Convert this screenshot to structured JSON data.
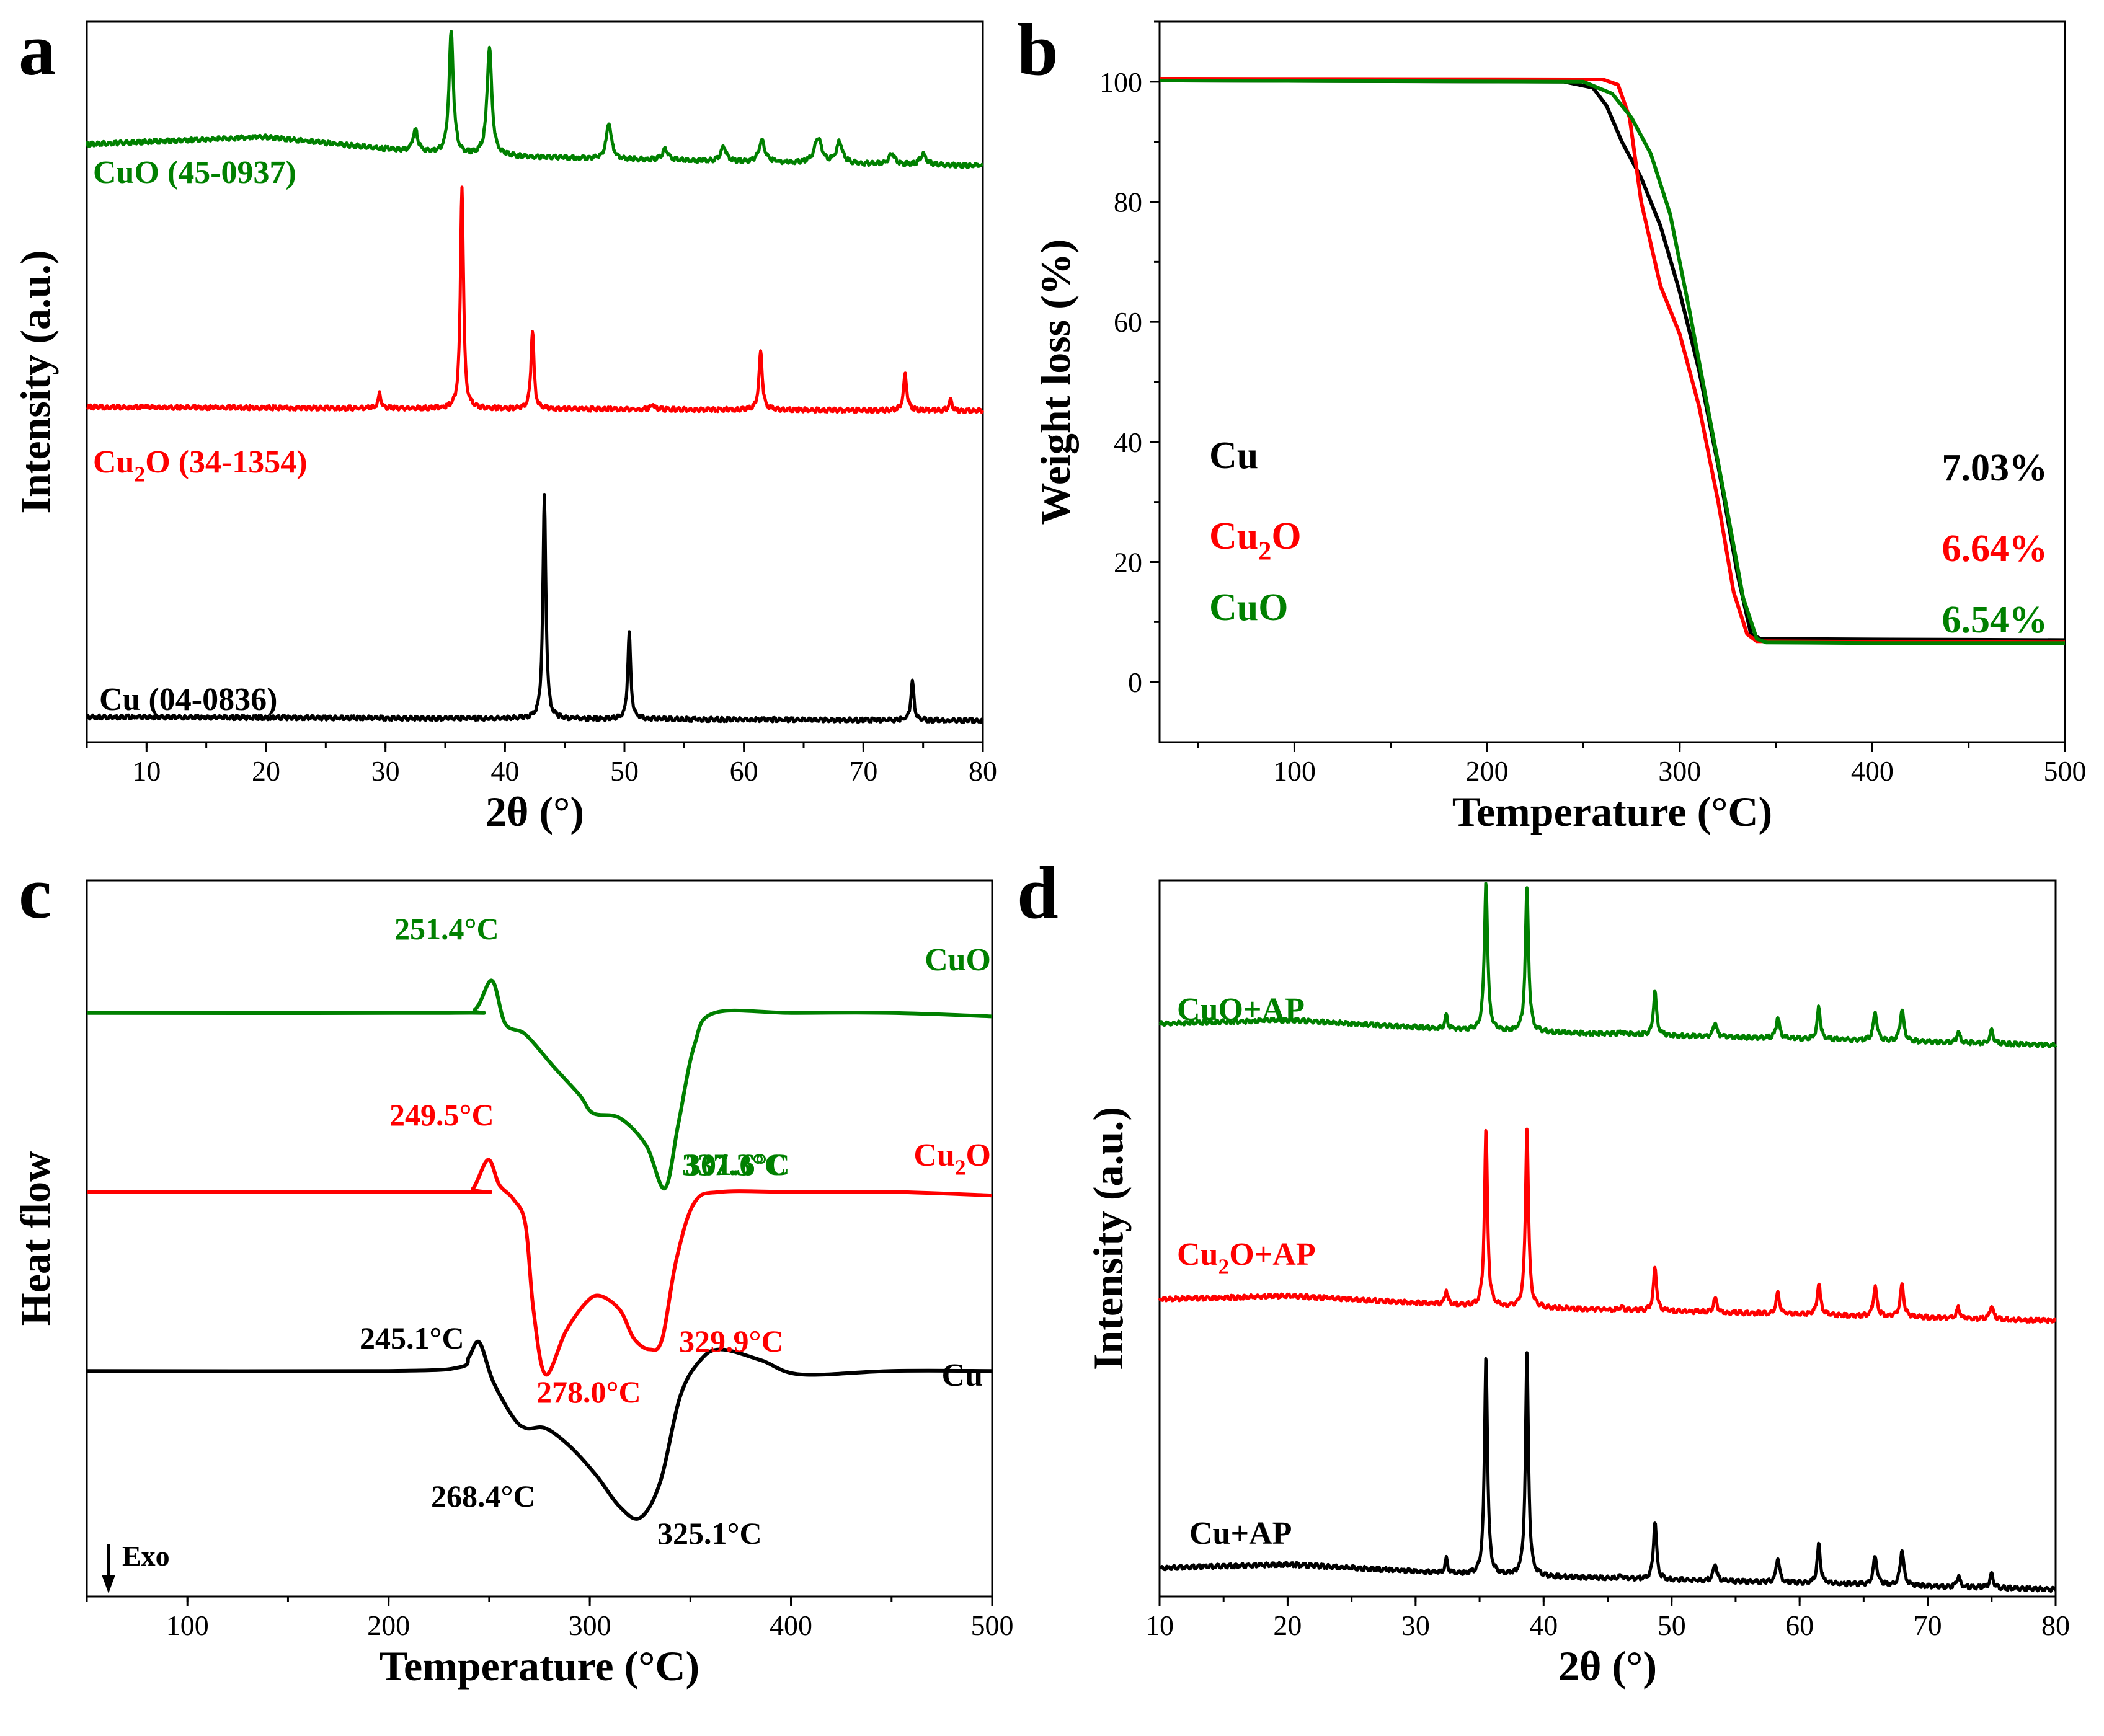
{
  "colors": {
    "black": "#000000",
    "red": "#ff0000",
    "green": "#008000"
  },
  "chart_data": [
    {
      "panel": "a",
      "type": "line",
      "xlabel": "2θ (°)",
      "ylabel": "Intensity (a.u.)",
      "xlim": [
        5,
        80
      ],
      "xticks": [
        10,
        20,
        30,
        40,
        50,
        60,
        70,
        80
      ],
      "yticks": [],
      "series": [
        {
          "name": "CuO (45-0937)",
          "name_main": "CuO (45-0937)",
          "color": "#008000",
          "baseline": 0.8,
          "background": [
            [
              5,
              0.03
            ],
            [
              20,
              0.04
            ],
            [
              35,
              0.015
            ],
            [
              60,
              0.005
            ],
            [
              80,
              0
            ]
          ],
          "peaks": [
            [
              32.5,
              0.03,
              0.25
            ],
            [
              35.5,
              0.17,
              0.22
            ],
            [
              38.7,
              0.15,
              0.24
            ],
            [
              48.7,
              0.05,
              0.25
            ],
            [
              53.4,
              0.015,
              0.3
            ],
            [
              58.3,
              0.02,
              0.3
            ],
            [
              61.5,
              0.03,
              0.3
            ],
            [
              66.2,
              0.035,
              0.35
            ],
            [
              68.0,
              0.03,
              0.3
            ],
            [
              72.4,
              0.015,
              0.3
            ],
            [
              75.0,
              0.015,
              0.3
            ]
          ]
        },
        {
          "name": "Cu2O (34-1354)",
          "name_main": "Cu",
          "name_sub": "2",
          "name_tail": "O (34-1354)",
          "color": "#ff0000",
          "baseline": 0.46,
          "background": [
            [
              5,
              0.005
            ],
            [
              80,
              0
            ]
          ],
          "peaks": [
            [
              29.5,
              0.02,
              0.15
            ],
            [
              36.4,
              0.31,
              0.15
            ],
            [
              42.3,
              0.11,
              0.15
            ],
            [
              52.4,
              0.007,
              0.2
            ],
            [
              61.4,
              0.08,
              0.17
            ],
            [
              73.5,
              0.05,
              0.17
            ],
            [
              77.3,
              0.015,
              0.15
            ]
          ]
        },
        {
          "name": "Cu (04-0836)",
          "name_main": "Cu (04-0836)",
          "color": "#000000",
          "baseline": 0.03,
          "background": [
            [
              5,
              0.005
            ],
            [
              80,
              0
            ]
          ],
          "peaks": [
            [
              43.3,
              0.31,
              0.15
            ],
            [
              50.4,
              0.12,
              0.15
            ],
            [
              74.1,
              0.055,
              0.15
            ]
          ]
        }
      ]
    },
    {
      "panel": "b",
      "type": "line",
      "xlabel": "Temperature (°C)",
      "ylabel": "Weight loss (%)",
      "xlim": [
        30,
        500
      ],
      "ylim": [
        -10,
        110
      ],
      "xticks": [
        100,
        200,
        300,
        400,
        500
      ],
      "yticks": [
        0,
        20,
        40,
        60,
        80,
        100
      ],
      "series": [
        {
          "name": "Cu",
          "name_main": "Cu",
          "color": "#000000",
          "residue": "7.03%",
          "x": [
            30,
            240,
            255,
            262,
            270,
            280,
            290,
            300,
            310,
            320,
            330,
            337,
            342,
            400,
            500
          ],
          "y": [
            100.2,
            100,
            99,
            96,
            90,
            84,
            76,
            65,
            52,
            36,
            18,
            8,
            7.2,
            7.1,
            7.0
          ]
        },
        {
          "name": "Cu2O",
          "name_main": "Cu",
          "name_sub": "2",
          "name_tail": "O",
          "color": "#ff0000",
          "residue": "6.64%",
          "x": [
            30,
            260,
            268,
            274,
            280,
            290,
            300,
            310,
            320,
            328,
            335,
            340,
            400,
            500
          ],
          "y": [
            100.5,
            100.4,
            99.5,
            94,
            80,
            66,
            58,
            46,
            30,
            15,
            8,
            6.8,
            6.7,
            6.6
          ]
        },
        {
          "name": "CuO",
          "name_main": "CuO",
          "color": "#008000",
          "residue": "6.54%",
          "x": [
            30,
            250,
            265,
            275,
            285,
            295,
            305,
            315,
            325,
            333,
            340,
            345,
            400,
            500
          ],
          "y": [
            100.2,
            100,
            98,
            94,
            88,
            78,
            62,
            45,
            28,
            14,
            7.2,
            6.6,
            6.5,
            6.5
          ]
        }
      ]
    },
    {
      "panel": "c",
      "type": "line",
      "xlabel": "Temperature (°C)",
      "ylabel": "Heat flow",
      "arrow_label": "Exo",
      "xlim": [
        50,
        500
      ],
      "xticks": [
        100,
        200,
        300,
        400,
        500
      ],
      "yticks": [],
      "series": [
        {
          "name": "CuO",
          "name_main": "CuO",
          "color": "#008000",
          "x": [
            50,
            230,
            243,
            251.4,
            258,
            268,
            282,
            295,
            301.6,
            315,
            328,
            337.3,
            344,
            352,
            362,
            400,
            450,
            500
          ],
          "y": [
            0.815,
            0.815,
            0.82,
            0.86,
            0.8,
            0.785,
            0.74,
            0.7,
            0.675,
            0.668,
            0.63,
            0.57,
            0.66,
            0.77,
            0.815,
            0.815,
            0.815,
            0.81
          ]
        },
        {
          "name": "Cu2O",
          "name_main": "Cu",
          "name_sub": "2",
          "name_tail": "O",
          "color": "#ff0000",
          "x": [
            50,
            235,
            242,
            249.5,
            255,
            262,
            268,
            272,
            278,
            288,
            298,
            305,
            315,
            322,
            329.9,
            336,
            343,
            352,
            365,
            400,
            450,
            500
          ],
          "y": [
            0.565,
            0.565,
            0.57,
            0.61,
            0.575,
            0.555,
            0.52,
            0.4,
            0.31,
            0.37,
            0.41,
            0.42,
            0.4,
            0.36,
            0.345,
            0.36,
            0.47,
            0.55,
            0.565,
            0.565,
            0.565,
            0.56
          ]
        },
        {
          "name": "Cu",
          "name_main": "Cu",
          "color": "#000000",
          "x": [
            50,
            200,
            235,
            240,
            245.1,
            252,
            262,
            268.4,
            278,
            290,
            303,
            315,
            325.1,
            335,
            345,
            355,
            365,
            385,
            405,
            450,
            500
          ],
          "y": [
            0.315,
            0.315,
            0.32,
            0.335,
            0.355,
            0.3,
            0.25,
            0.235,
            0.235,
            0.21,
            0.17,
            0.125,
            0.11,
            0.16,
            0.28,
            0.33,
            0.345,
            0.33,
            0.31,
            0.315,
            0.315
          ]
        }
      ],
      "annotations": [
        {
          "text": "251.4°C",
          "color": "#008000"
        },
        {
          "text": "301.6°C",
          "color": "#008000"
        },
        {
          "text": "337.3°C",
          "color": "#008000"
        },
        {
          "text": "249.5°C",
          "color": "#ff0000"
        },
        {
          "text": "278.0°C",
          "color": "#ff0000"
        },
        {
          "text": "329.9°C",
          "color": "#ff0000"
        },
        {
          "text": "245.1°C",
          "color": "#000000"
        },
        {
          "text": "268.4°C",
          "color": "#000000"
        },
        {
          "text": "325.1°C",
          "color": "#000000"
        }
      ]
    },
    {
      "panel": "d",
      "type": "line",
      "xlabel": "2θ (°)",
      "ylabel": "Intensity (a.u.)",
      "xlim": [
        10,
        80
      ],
      "xticks": [
        10,
        20,
        30,
        40,
        50,
        60,
        70,
        80
      ],
      "yticks": [],
      "series": [
        {
          "name": "CuO+AP",
          "name_main": "CuO+AP",
          "color": "#008000",
          "baseline": 0.77,
          "background": [
            [
              10,
              0.03
            ],
            [
              20,
              0.035
            ],
            [
              35,
              0.02
            ],
            [
              80,
              0
            ]
          ],
          "peaks": [
            [
              32.4,
              0.02,
              0.12
            ],
            [
              35.5,
              0.21,
              0.15
            ],
            [
              38.7,
              0.2,
              0.15
            ],
            [
              46.1,
              0.005,
              0.15
            ],
            [
              48.7,
              0.06,
              0.15
            ],
            [
              53.4,
              0.02,
              0.15
            ],
            [
              58.3,
              0.03,
              0.15
            ],
            [
              61.5,
              0.045,
              0.15
            ],
            [
              65.9,
              0.04,
              0.17
            ],
            [
              68.0,
              0.045,
              0.17
            ],
            [
              72.4,
              0.015,
              0.15
            ],
            [
              75.0,
              0.02,
              0.15
            ]
          ]
        },
        {
          "name": "Cu2O+AP",
          "name_main": "Cu",
          "name_sub": "2",
          "name_tail": "O+AP",
          "color": "#ff0000",
          "baseline": 0.385,
          "background": [
            [
              10,
              0.03
            ],
            [
              20,
              0.035
            ],
            [
              35,
              0.02
            ],
            [
              80,
              0
            ]
          ],
          "peaks": [
            [
              32.4,
              0.02,
              0.12
            ],
            [
              35.5,
              0.25,
              0.14
            ],
            [
              38.7,
              0.25,
              0.14
            ],
            [
              46.1,
              0.005,
              0.15
            ],
            [
              48.7,
              0.06,
              0.15
            ],
            [
              53.4,
              0.02,
              0.15
            ],
            [
              58.3,
              0.03,
              0.15
            ],
            [
              61.5,
              0.045,
              0.15
            ],
            [
              65.9,
              0.04,
              0.17
            ],
            [
              68.0,
              0.045,
              0.17
            ],
            [
              72.4,
              0.015,
              0.15
            ],
            [
              75.0,
              0.02,
              0.15
            ]
          ]
        },
        {
          "name": "Cu+AP",
          "name_main": "Cu+AP",
          "color": "#000000",
          "baseline": 0.01,
          "background": [
            [
              10,
              0.03
            ],
            [
              20,
              0.035
            ],
            [
              35,
              0.02
            ],
            [
              80,
              0
            ]
          ],
          "peaks": [
            [
              32.4,
              0.02,
              0.12
            ],
            [
              35.5,
              0.31,
              0.14
            ],
            [
              38.7,
              0.31,
              0.14
            ],
            [
              46.1,
              0.005,
              0.15
            ],
            [
              48.7,
              0.08,
              0.15
            ],
            [
              53.4,
              0.025,
              0.15
            ],
            [
              58.3,
              0.035,
              0.15
            ],
            [
              61.5,
              0.055,
              0.15
            ],
            [
              65.9,
              0.04,
              0.17
            ],
            [
              68.0,
              0.05,
              0.17
            ],
            [
              72.4,
              0.015,
              0.15
            ],
            [
              75.0,
              0.02,
              0.15
            ]
          ]
        }
      ]
    }
  ]
}
